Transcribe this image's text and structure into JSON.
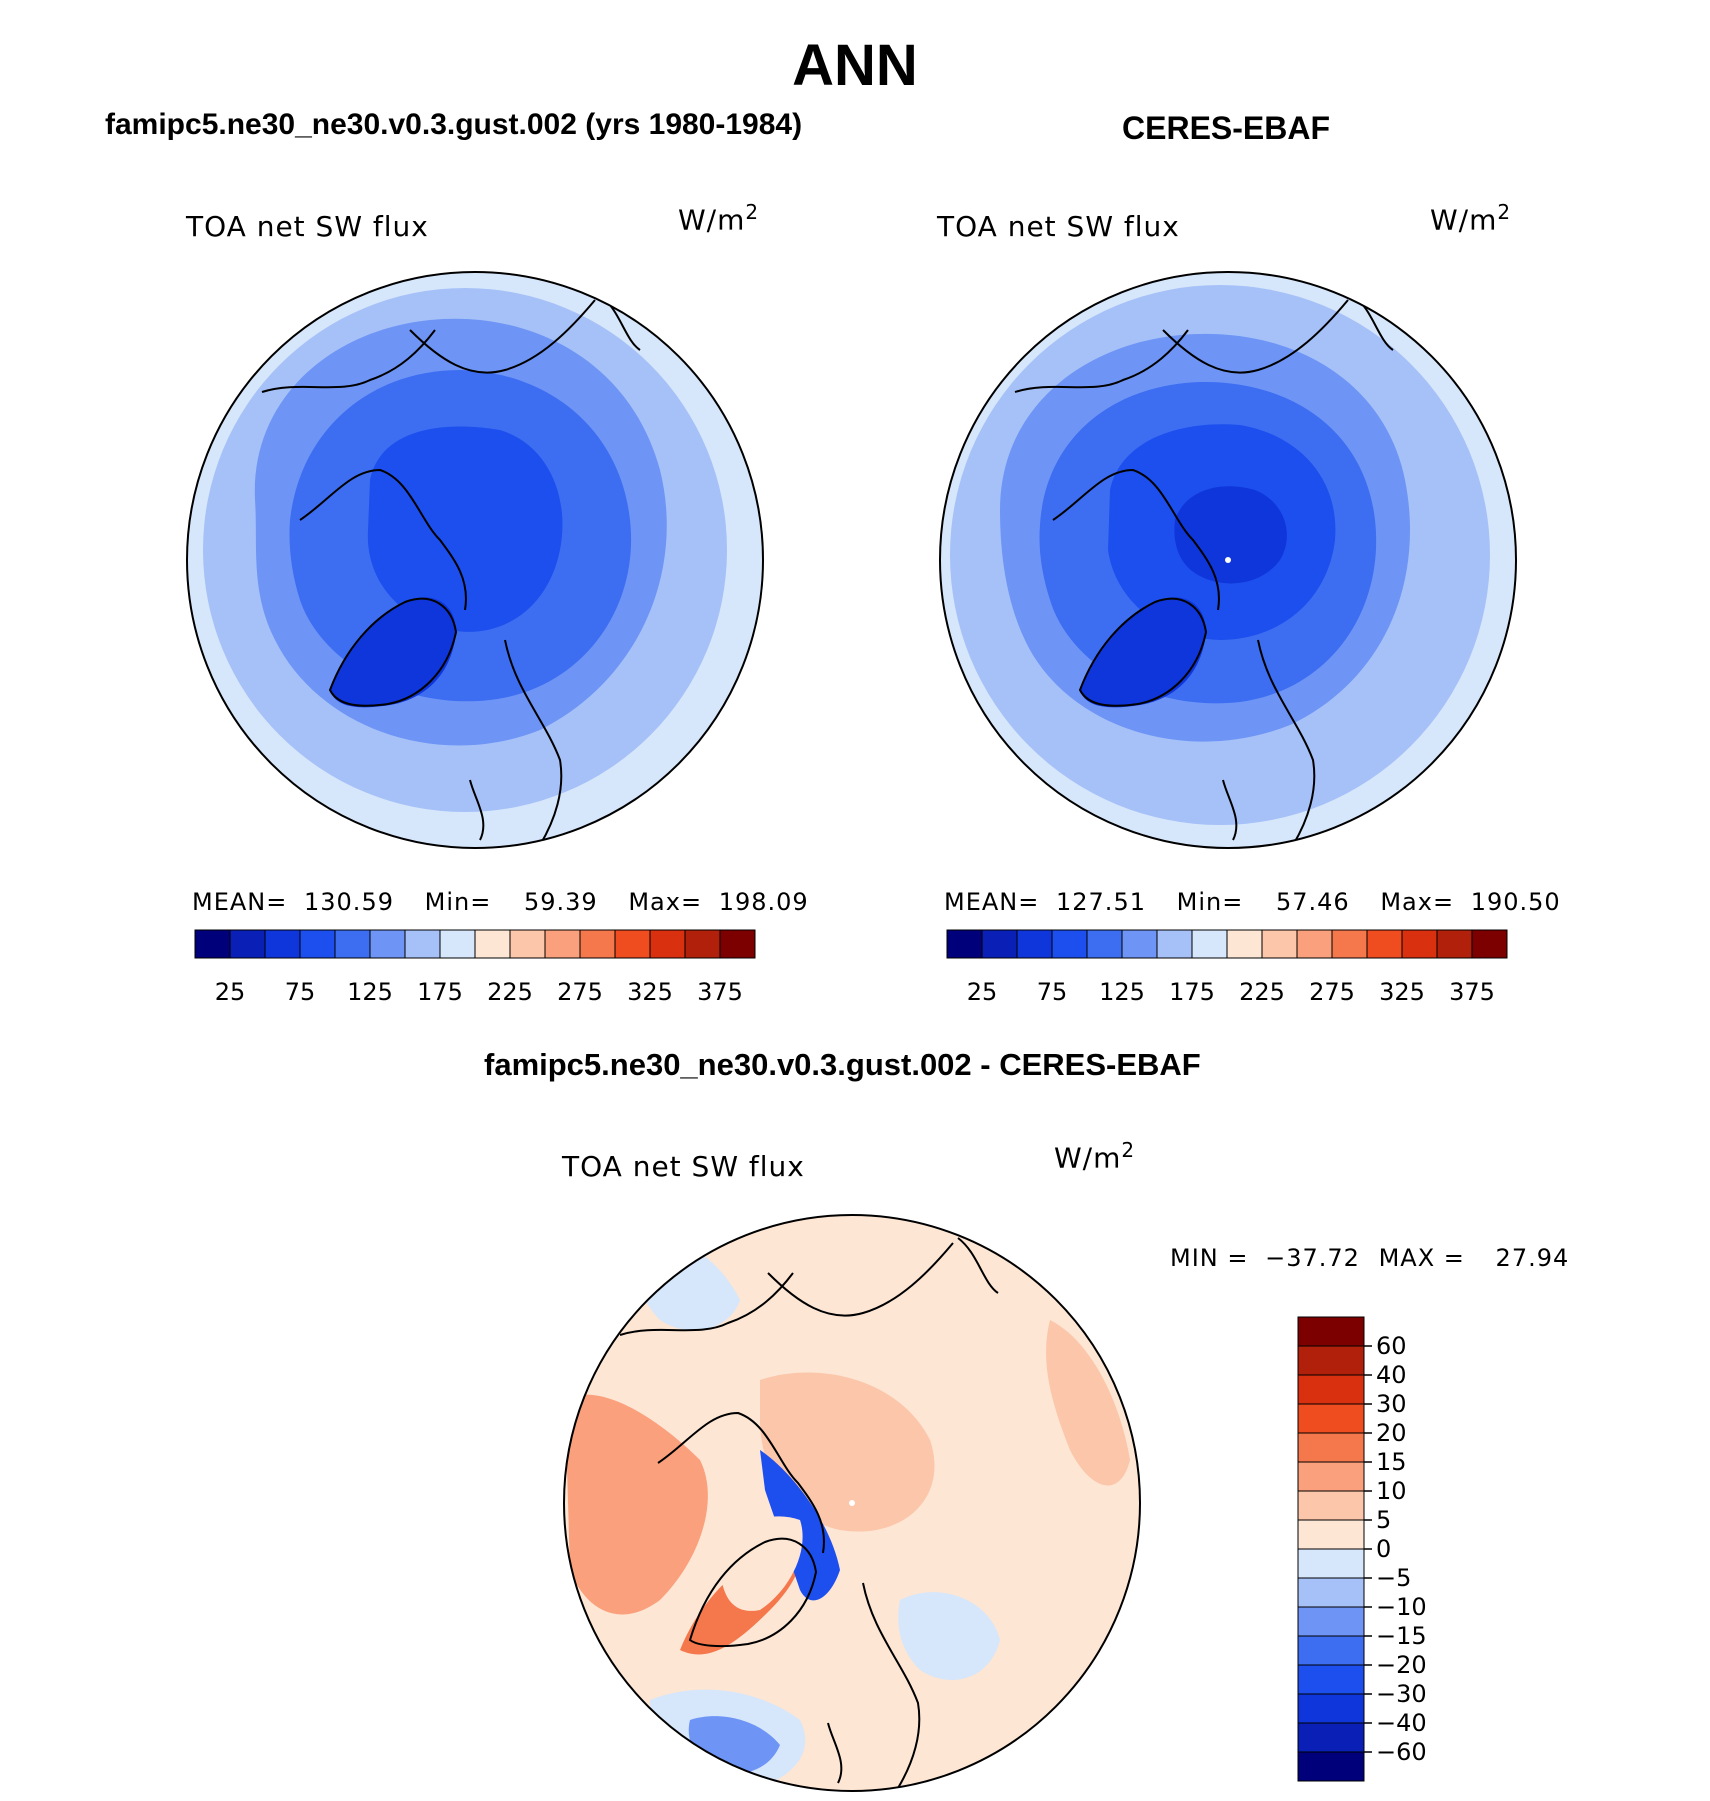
{
  "main_title": "ANN",
  "panels": {
    "left": {
      "header": "famipc5.ne30_ne30.v0.3.gust.002 (yrs 1980-1984)",
      "var_label": "TOA net SW flux",
      "units_base": "W/m",
      "units_exp": "2",
      "stats": {
        "mean_label": "MEAN=",
        "mean": "130.59",
        "min_label": "Min=",
        "min": "59.39",
        "max_label": "Max=",
        "max": "198.09"
      }
    },
    "right": {
      "header": "CERES-EBAF",
      "var_label": "TOA net SW flux",
      "units_base": "W/m",
      "units_exp": "2",
      "stats": {
        "mean_label": "MEAN=",
        "mean": "127.51",
        "min_label": "Min=",
        "min": "57.46",
        "max_label": "Max=",
        "max": "190.50"
      }
    },
    "diff": {
      "header": "famipc5.ne30_ne30.v0.3.gust.002 - CERES-EBAF",
      "var_label": "TOA net SW flux",
      "units_base": "W/m",
      "units_exp": "2",
      "stats": {
        "min_label": "MIN =",
        "min": "−37.72",
        "max_label": "MAX =",
        "max": "27.94"
      }
    }
  },
  "chart_data": [
    {
      "type": "heatmap",
      "projection": "north-polar-stereographic",
      "title": "famipc5.ne30_ne30.v0.3.gust.002 (yrs 1980-1984)",
      "variable": "TOA net SW flux",
      "stats": {
        "mean": 130.59,
        "min": 59.39,
        "max": 198.09
      },
      "colorbar": {
        "orientation": "horizontal",
        "tick_labels": [
          "25",
          "75",
          "125",
          "175",
          "225",
          "275",
          "325",
          "375"
        ],
        "colors": [
          "#00007a",
          "#0a1fb5",
          "#0f36db",
          "#1d4fee",
          "#3d6ef2",
          "#6e95f5",
          "#a6c1f8",
          "#d6e6fb",
          "#fde6d4",
          "#fcc6aa",
          "#faa07c",
          "#f5774c",
          "#ef4d1f",
          "#d9310f",
          "#b0200a",
          "#7d0000"
        ]
      }
    },
    {
      "type": "heatmap",
      "projection": "north-polar-stereographic",
      "title": "CERES-EBAF",
      "variable": "TOA net SW flux",
      "stats": {
        "mean": 127.51,
        "min": 57.46,
        "max": 190.5
      },
      "colorbar": {
        "orientation": "horizontal",
        "tick_labels": [
          "25",
          "75",
          "125",
          "175",
          "225",
          "275",
          "325",
          "375"
        ],
        "colors": [
          "#00007a",
          "#0a1fb5",
          "#0f36db",
          "#1d4fee",
          "#3d6ef2",
          "#6e95f5",
          "#a6c1f8",
          "#d6e6fb",
          "#fde6d4",
          "#fcc6aa",
          "#faa07c",
          "#f5774c",
          "#ef4d1f",
          "#d9310f",
          "#b0200a",
          "#7d0000"
        ]
      }
    },
    {
      "type": "heatmap",
      "projection": "north-polar-stereographic",
      "title": "famipc5.ne30_ne30.v0.3.gust.002 - CERES-EBAF",
      "variable": "TOA net SW flux",
      "stats": {
        "min": -37.72,
        "max": 27.94
      },
      "colorbar": {
        "orientation": "vertical",
        "tick_labels": [
          "60",
          "40",
          "30",
          "20",
          "15",
          "10",
          "5",
          "0",
          "−5",
          "−10",
          "−15",
          "−20",
          "−30",
          "−40",
          "−60"
        ],
        "colors": [
          "#7d0000",
          "#b0200a",
          "#d9310f",
          "#ef4d1f",
          "#f5774c",
          "#faa07c",
          "#fcc6aa",
          "#fde6d4",
          "#d6e6fb",
          "#a6c1f8",
          "#6e95f5",
          "#3d6ef2",
          "#1d4fee",
          "#0f36db",
          "#0a1fb5",
          "#00007a"
        ]
      }
    }
  ]
}
